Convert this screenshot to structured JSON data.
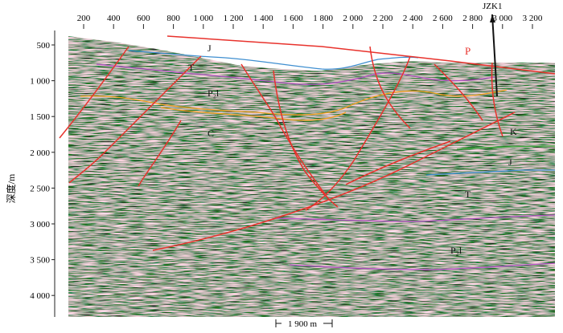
{
  "figure": {
    "x_ticks": [
      "200",
      "400",
      "600",
      "800",
      "1 000",
      "1 200",
      "1 400",
      "1 600",
      "1 800",
      "2 000",
      "2 200",
      "2 400",
      "2 600",
      "2 800",
      "3 000",
      "3 200"
    ],
    "y_ticks": [
      "500",
      "1 000",
      "1 500",
      "2 000",
      "2 500",
      "3 000",
      "3 500",
      "4 000"
    ],
    "y_axis_label": "深度/m",
    "well_label": "JZK1",
    "fault_label": "P",
    "horizon_labels": [
      "J",
      "T",
      "P₂l",
      "C",
      "K",
      "J",
      "T",
      "P₂l"
    ],
    "scale_bar_label": "1 900 m",
    "colors": {
      "fault": "#e8322c",
      "horizon_J": "#3f8fd0",
      "horizon_T": "#b04fc0",
      "horizon_P2l": "#f0a020",
      "horizon_K": "#3aa83a",
      "well": "#111111"
    }
  }
}
